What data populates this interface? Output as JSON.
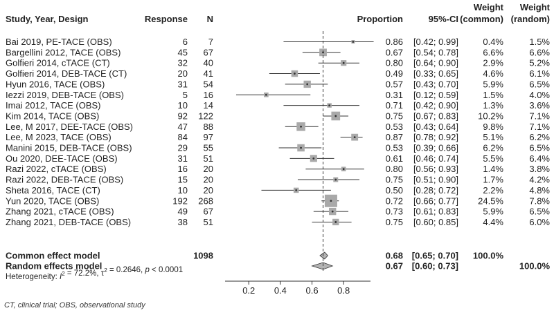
{
  "chart_data": {
    "type": "forest",
    "headers": {
      "study": "Study, Year, Design",
      "response": "Response",
      "n": "N",
      "proportion": "Proportion",
      "ci": "95%-CI",
      "weight_common_l1": "Weight",
      "weight_common_l2": "(common)",
      "weight_random_l1": "Weight",
      "weight_random_l2": "(random)"
    },
    "studies": [
      {
        "label": "Bai 2019, PE-TACE (OBS)",
        "response": "6",
        "n": "7",
        "prop": 0.86,
        "lo": 0.42,
        "hi": 0.99,
        "prop_text": "0.86",
        "ci_text": "[0.42; 0.99]",
        "w_common": 0.4,
        "w_common_text": "0.4%",
        "w_random_text": "1.5%"
      },
      {
        "label": "Bargellini 2012, TACE (OBS)",
        "response": "45",
        "n": "67",
        "prop": 0.67,
        "lo": 0.54,
        "hi": 0.78,
        "prop_text": "0.67",
        "ci_text": "[0.54; 0.78]",
        "w_common": 6.6,
        "w_common_text": "6.6%",
        "w_random_text": "6.6%"
      },
      {
        "label": "Golfieri 2014, cTACE (CT)",
        "response": "32",
        "n": "40",
        "prop": 0.8,
        "lo": 0.64,
        "hi": 0.9,
        "prop_text": "0.80",
        "ci_text": "[0.64; 0.90]",
        "w_common": 2.9,
        "w_common_text": "2.9%",
        "w_random_text": "5.2%"
      },
      {
        "label": "Golfieri 2014, DEB-TACE (CT)",
        "response": "20",
        "n": "41",
        "prop": 0.49,
        "lo": 0.33,
        "hi": 0.65,
        "prop_text": "0.49",
        "ci_text": "[0.33; 0.65]",
        "w_common": 4.6,
        "w_common_text": "4.6%",
        "w_random_text": "6.1%"
      },
      {
        "label": "Hyun 2016, TACE (OBS)",
        "response": "31",
        "n": "54",
        "prop": 0.57,
        "lo": 0.43,
        "hi": 0.7,
        "prop_text": "0.57",
        "ci_text": "[0.43; 0.70]",
        "w_common": 5.9,
        "w_common_text": "5.9%",
        "w_random_text": "6.5%"
      },
      {
        "label": "Iezzi 2019, DEB-TACE (OBS)",
        "response": "5",
        "n": "16",
        "prop": 0.31,
        "lo": 0.12,
        "hi": 0.59,
        "prop_text": "0.31",
        "ci_text": "[0.12; 0.59]",
        "w_common": 1.5,
        "w_common_text": "1.5%",
        "w_random_text": "4.0%"
      },
      {
        "label": "Imai 2012, TACE (OBS)",
        "response": "10",
        "n": "14",
        "prop": 0.71,
        "lo": 0.42,
        "hi": 0.9,
        "prop_text": "0.71",
        "ci_text": "[0.42; 0.90]",
        "w_common": 1.3,
        "w_common_text": "1.3%",
        "w_random_text": "3.6%"
      },
      {
        "label": "Kim 2014, TACE (OBS)",
        "response": "92",
        "n": "122",
        "prop": 0.75,
        "lo": 0.67,
        "hi": 0.83,
        "prop_text": "0.75",
        "ci_text": "[0.67; 0.83]",
        "w_common": 10.2,
        "w_common_text": "10.2%",
        "w_random_text": "7.1%"
      },
      {
        "label": "Lee, M 2017, DEE-TACE (OBS)",
        "response": "47",
        "n": "88",
        "prop": 0.53,
        "lo": 0.43,
        "hi": 0.64,
        "prop_text": "0.53",
        "ci_text": "[0.43; 0.64]",
        "w_common": 9.8,
        "w_common_text": "9.8%",
        "w_random_text": "7.1%"
      },
      {
        "label": "Lee, M 2023, TACE (OBS)",
        "response": "84",
        "n": "97",
        "prop": 0.87,
        "lo": 0.78,
        "hi": 0.92,
        "prop_text": "0.87",
        "ci_text": "[0.78; 0.92]",
        "w_common": 5.1,
        "w_common_text": "5.1%",
        "w_random_text": "6.2%"
      },
      {
        "label": "Manini 2015, DEB-TACE (OBS)",
        "response": "29",
        "n": "55",
        "prop": 0.53,
        "lo": 0.39,
        "hi": 0.66,
        "prop_text": "0.53",
        "ci_text": "[0.39; 0.66]",
        "w_common": 6.2,
        "w_common_text": "6.2%",
        "w_random_text": "6.5%"
      },
      {
        "label": "Ou 2020, DEE-TACE (OBS)",
        "response": "31",
        "n": "51",
        "prop": 0.61,
        "lo": 0.46,
        "hi": 0.74,
        "prop_text": "0.61",
        "ci_text": "[0.46; 0.74]",
        "w_common": 5.5,
        "w_common_text": "5.5%",
        "w_random_text": "6.4%"
      },
      {
        "label": "Razi 2022, cTACE (OBS)",
        "response": "16",
        "n": "20",
        "prop": 0.8,
        "lo": 0.56,
        "hi": 0.93,
        "prop_text": "0.80",
        "ci_text": "[0.56; 0.93]",
        "w_common": 1.4,
        "w_common_text": "1.4%",
        "w_random_text": "3.8%"
      },
      {
        "label": "Razi 2022, DEB-TACE (OBS)",
        "response": "15",
        "n": "20",
        "prop": 0.75,
        "lo": 0.51,
        "hi": 0.9,
        "prop_text": "0.75",
        "ci_text": "[0.51; 0.90]",
        "w_common": 1.7,
        "w_common_text": "1.7%",
        "w_random_text": "4.2%"
      },
      {
        "label": "Sheta 2016, TACE (CT)",
        "response": "10",
        "n": "20",
        "prop": 0.5,
        "lo": 0.28,
        "hi": 0.72,
        "prop_text": "0.50",
        "ci_text": "[0.28; 0.72]",
        "w_common": 2.2,
        "w_common_text": "2.2%",
        "w_random_text": "4.8%"
      },
      {
        "label": "Yun 2020, TACE (OBS)",
        "response": "192",
        "n": "268",
        "prop": 0.72,
        "lo": 0.66,
        "hi": 0.77,
        "prop_text": "0.72",
        "ci_text": "[0.66; 0.77]",
        "w_common": 24.5,
        "w_common_text": "24.5%",
        "w_random_text": "7.8%"
      },
      {
        "label": "Zhang 2021, cTACE (OBS)",
        "response": "49",
        "n": "67",
        "prop": 0.73,
        "lo": 0.61,
        "hi": 0.83,
        "prop_text": "0.73",
        "ci_text": "[0.61; 0.83]",
        "w_common": 5.9,
        "w_common_text": "5.9%",
        "w_random_text": "6.5%"
      },
      {
        "label": "Zhang 2021, DEB-TACE (OBS)",
        "response": "38",
        "n": "51",
        "prop": 0.75,
        "lo": 0.6,
        "hi": 0.85,
        "prop_text": "0.75",
        "ci_text": "[0.60; 0.85]",
        "w_common": 4.4,
        "w_common_text": "4.4%",
        "w_random_text": "6.0%"
      }
    ],
    "common": {
      "label": "Common effect model",
      "n": "1098",
      "prop": 0.68,
      "lo": 0.65,
      "hi": 0.7,
      "prop_text": "0.68",
      "ci_text": "[0.65; 0.70]",
      "weight_text": "100.0%"
    },
    "random": {
      "label": "Random effects model",
      "prop": 0.67,
      "lo": 0.6,
      "hi": 0.73,
      "prop_text": "0.67",
      "ci_text": "[0.60; 0.73]",
      "weight_text": "100.0%"
    },
    "heterogeneity": {
      "prefix": "Heterogeneity: ",
      "i2_symbol": "I",
      "i2_value": " = 72.2%, ",
      "tau_symbol": "τ",
      "tau_value": " = 0.2646, ",
      "p_symbol": "p",
      "p_value": " < 0.0001"
    },
    "axis": {
      "min": 0.05,
      "max": 0.97,
      "ticks": [
        0.2,
        0.4,
        0.6,
        0.8
      ],
      "tick_labels": [
        "0.2",
        "0.4",
        "0.6",
        "0.8"
      ],
      "reference": 0.67
    }
  },
  "caption": "CT, clinical trial; OBS, observational study",
  "colors": {
    "text": "#222222",
    "line": "#333333",
    "square": "#a9a9a9",
    "diamond": "#b3b3b3",
    "ref": "#333333"
  }
}
